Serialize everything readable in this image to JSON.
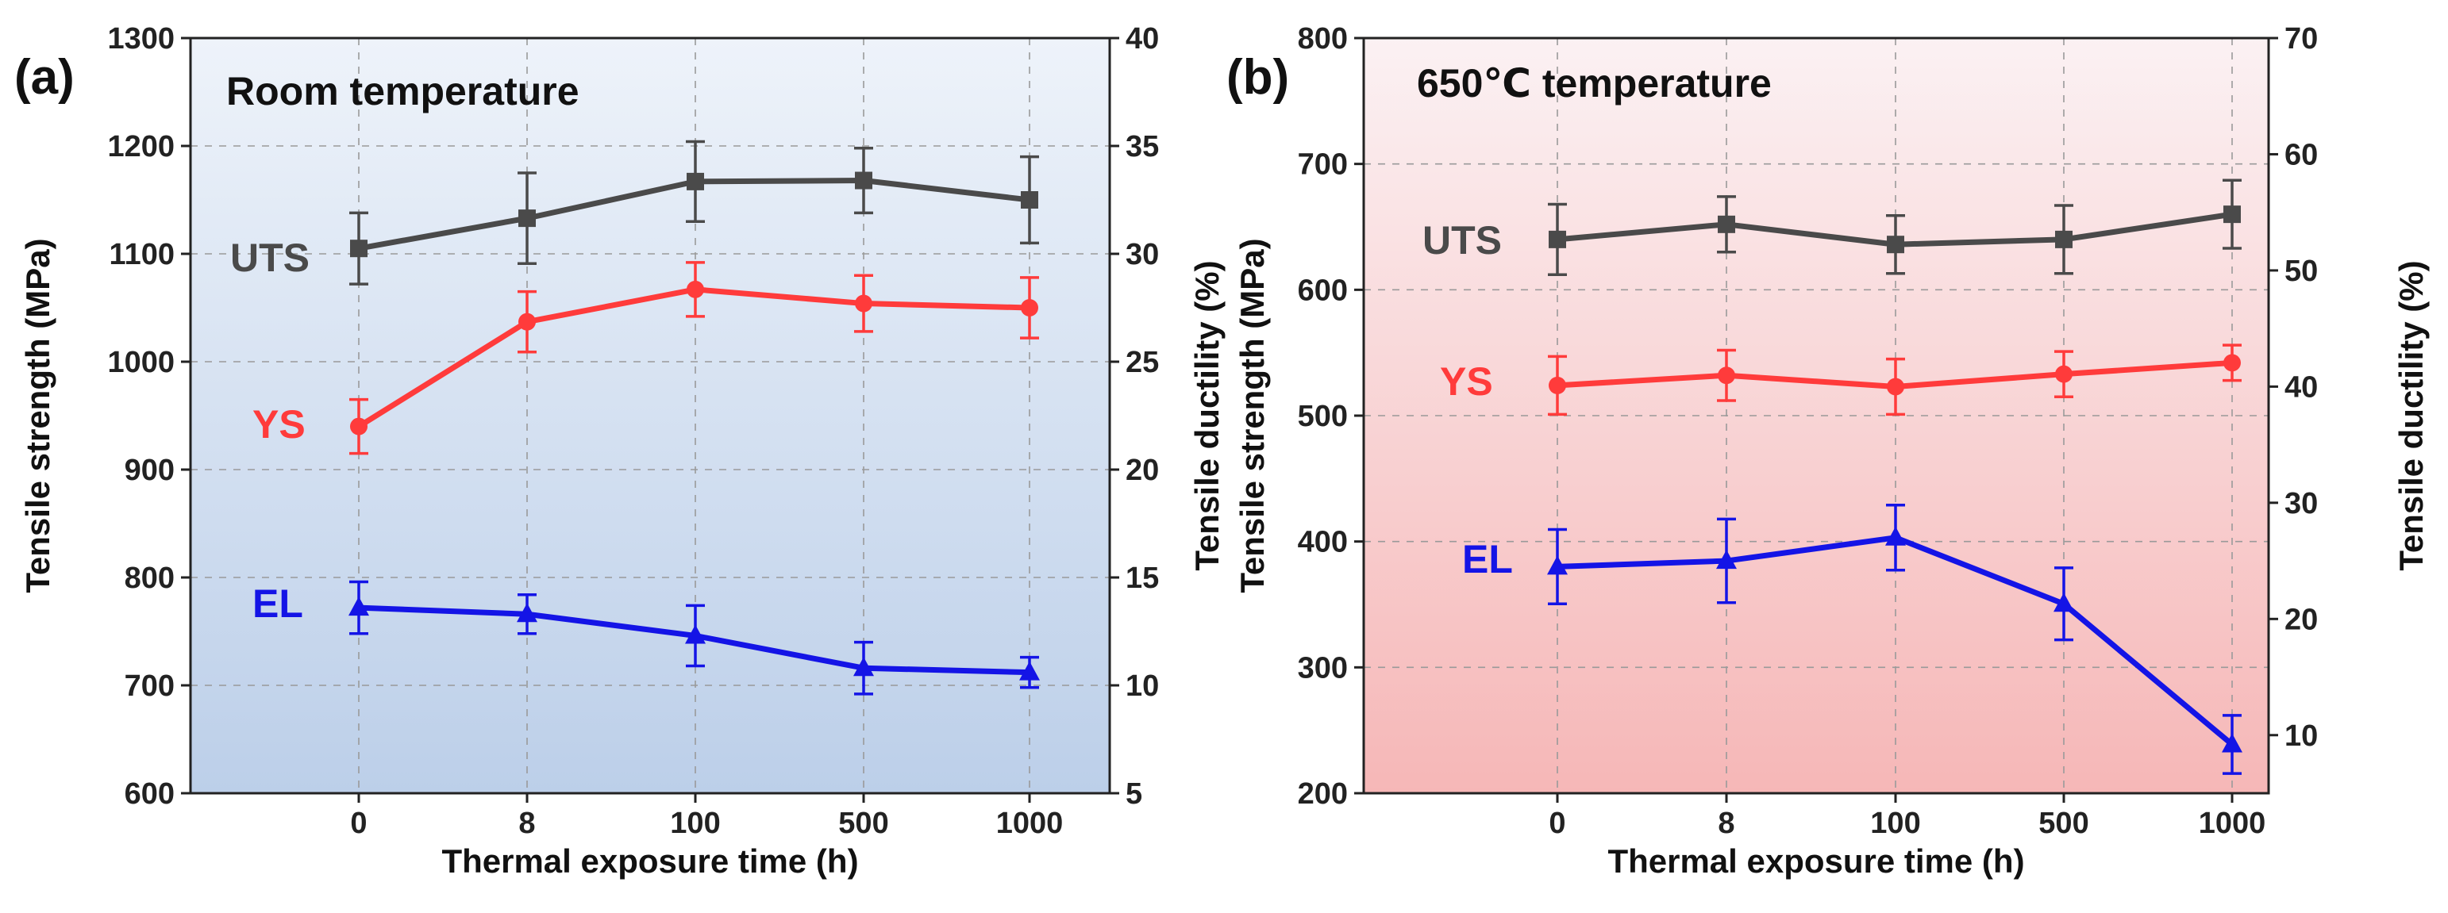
{
  "colors": {
    "uts": "#4a4a4a",
    "ys": "#ff3b3b",
    "el": "#1414e6",
    "bg_a_top": "#eef3fa",
    "bg_a_bottom": "#bccfe9",
    "bg_b_top": "#fbf1f3",
    "bg_b_bottom": "#f6b7b7"
  },
  "chart_data": [
    {
      "type": "line",
      "panel_label": "(a)",
      "title": "Room temperature",
      "xlabel": "Thermal exposure time (h)",
      "ylabel": "Tensile strength (MPa)",
      "y2label": "Tensile ductility (%)",
      "categories": [
        "0",
        "8",
        "100",
        "500",
        "1000"
      ],
      "ylim": [
        600,
        1300
      ],
      "yticks": [
        600,
        700,
        800,
        900,
        1000,
        1100,
        1200,
        1300
      ],
      "y2lim": [
        5,
        40
      ],
      "y2ticks": [
        5,
        10,
        15,
        20,
        25,
        30,
        35,
        40
      ],
      "grid": true,
      "series": [
        {
          "name": "UTS",
          "axis": "left",
          "color": "#4a4a4a",
          "marker": "square",
          "label": "UTS",
          "values": [
            1105,
            1133,
            1167,
            1168,
            1150
          ],
          "errors": [
            33,
            42,
            37,
            30,
            40
          ]
        },
        {
          "name": "YS",
          "axis": "left",
          "color": "#ff3b3b",
          "marker": "circle",
          "label": "YS",
          "values": [
            940,
            1037,
            1067,
            1054,
            1050
          ],
          "errors": [
            25,
            28,
            25,
            26,
            28
          ]
        },
        {
          "name": "EL",
          "axis": "right",
          "color": "#1414e6",
          "marker": "triangle",
          "label": "EL",
          "values": [
            13.6,
            13.3,
            12.3,
            10.8,
            10.6
          ],
          "errors": [
            1.2,
            0.9,
            1.4,
            1.2,
            0.7
          ]
        }
      ]
    },
    {
      "type": "line",
      "panel_label": "(b)",
      "title": "650℃ temperature",
      "xlabel": "Thermal exposure time (h)",
      "ylabel": "Tensile strength (MPa)",
      "y2label": "Tensile ductility (%)",
      "categories": [
        "0",
        "8",
        "100",
        "500",
        "1000"
      ],
      "ylim": [
        200,
        800
      ],
      "yticks": [
        200,
        300,
        400,
        500,
        600,
        700,
        800
      ],
      "y2lim": [
        5,
        70
      ],
      "y2ticks": [
        10,
        20,
        30,
        40,
        50,
        60,
        70
      ],
      "grid": true,
      "series": [
        {
          "name": "UTS",
          "axis": "left",
          "color": "#4a4a4a",
          "marker": "square",
          "label": "UTS",
          "values": [
            640,
            652,
            636,
            640,
            660
          ],
          "errors": [
            28,
            22,
            23,
            27,
            27
          ]
        },
        {
          "name": "YS",
          "axis": "left",
          "color": "#ff3b3b",
          "marker": "circle",
          "label": "YS",
          "values": [
            524,
            532,
            523,
            533,
            542
          ],
          "errors": [
            23,
            20,
            22,
            18,
            14
          ]
        },
        {
          "name": "EL",
          "axis": "right",
          "color": "#1414e6",
          "marker": "triangle",
          "label": "EL",
          "values": [
            24.5,
            25.0,
            27.0,
            21.3,
            9.2
          ],
          "errors": [
            3.2,
            3.6,
            2.8,
            3.1,
            2.5
          ]
        }
      ]
    }
  ]
}
